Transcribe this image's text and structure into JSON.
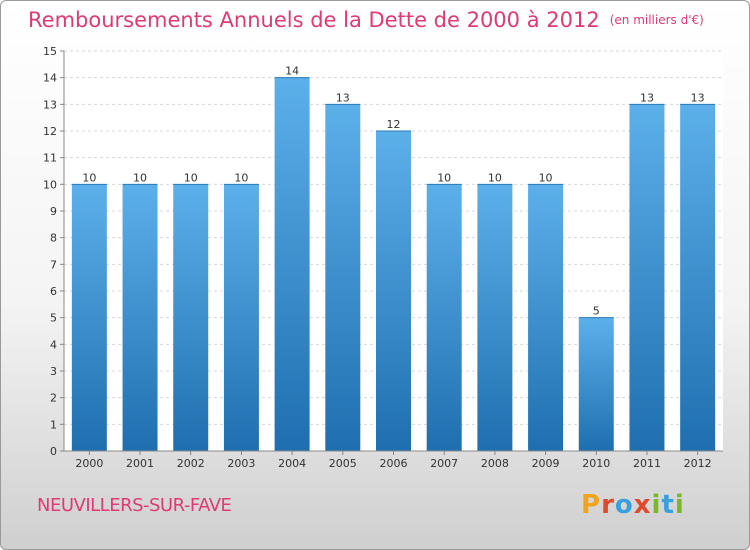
{
  "header": {
    "title": "Remboursements Annuels de la Dette de 2000 à 2012",
    "unit": "(en milliers d'€)"
  },
  "footer": {
    "commune": "NEUVILLERS-SUR-FAVE",
    "logo_text": "Proxiti"
  },
  "colors": {
    "title": "#e03a74",
    "bar_top": "#5cb0ea",
    "bar_bottom": "#1f6fb0",
    "logo": [
      "#f0a41e",
      "#e04a2a",
      "#3aa0dc",
      "#e04a2a",
      "#7ab82a",
      "#3aa0dc",
      "#7ab82a"
    ]
  },
  "chart_data": {
    "type": "bar",
    "title": "Remboursements Annuels de la Dette de 2000 à 2012",
    "categories": [
      "2000",
      "2001",
      "2002",
      "2003",
      "2004",
      "2005",
      "2006",
      "2007",
      "2008",
      "2009",
      "2010",
      "2011",
      "2012"
    ],
    "values": [
      10,
      10,
      10,
      10,
      14,
      13,
      12,
      10,
      10,
      10,
      5,
      13,
      13
    ],
    "ylim": [
      0,
      15
    ],
    "yticks": [
      "0",
      "1",
      "2",
      "3",
      "4",
      "5",
      "6",
      "7",
      "8",
      "9",
      "10",
      "11",
      "12",
      "13",
      "14",
      "15"
    ],
    "grid": true
  }
}
